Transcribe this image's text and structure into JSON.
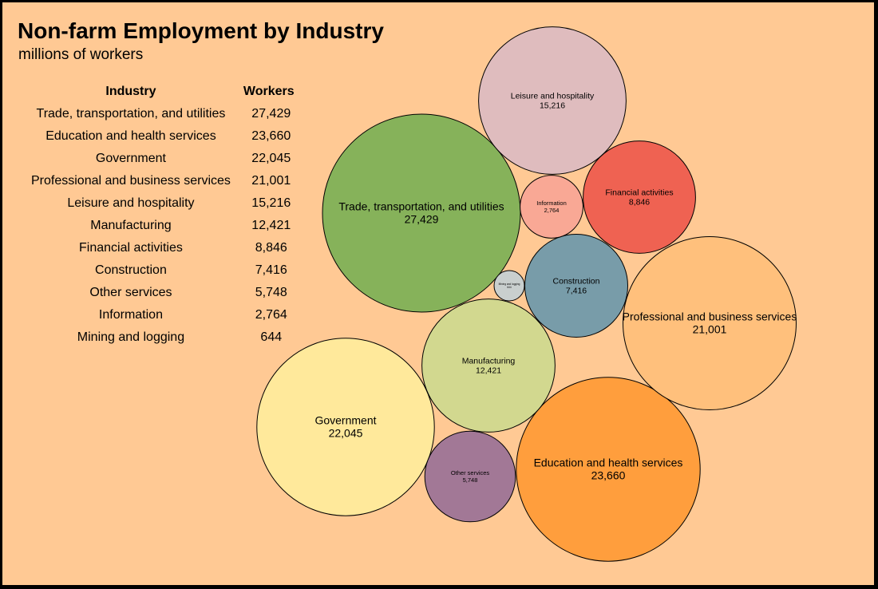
{
  "chart_data": {
    "type": "bubble",
    "title": "Non-farm Employment by Industry",
    "subtitle": "millions of workers",
    "table_headers": {
      "industry": "Industry",
      "workers": "Workers"
    },
    "series": [
      {
        "name": "Trade, transportation, and utilities",
        "label": "27,429",
        "value": 27429,
        "color": "#86b25a"
      },
      {
        "name": "Education and health services",
        "label": "23,660",
        "value": 23660,
        "color": "#ff9e3d"
      },
      {
        "name": "Government",
        "label": "22,045",
        "value": 22045,
        "color": "#ffe99b"
      },
      {
        "name": "Professional and business services",
        "label": "21,001",
        "value": 21001,
        "color": "#ffc07c"
      },
      {
        "name": "Leisure and hospitality",
        "label": "15,216",
        "value": 15216,
        "color": "#dfbcbe"
      },
      {
        "name": "Manufacturing",
        "label": "12,421",
        "value": 12421,
        "color": "#d2d88f"
      },
      {
        "name": "Financial activities",
        "label": "8,846",
        "value": 8846,
        "color": "#ef6252"
      },
      {
        "name": "Construction",
        "label": "7,416",
        "value": 7416,
        "color": "#789ca9"
      },
      {
        "name": "Other services",
        "label": "5,748",
        "value": 5748,
        "color": "#a27896"
      },
      {
        "name": "Information",
        "label": "2,764",
        "value": 2764,
        "color": "#f9a895"
      },
      {
        "name": "Mining and logging",
        "label": "644",
        "value": 644,
        "color": "#c9cfce"
      }
    ]
  }
}
